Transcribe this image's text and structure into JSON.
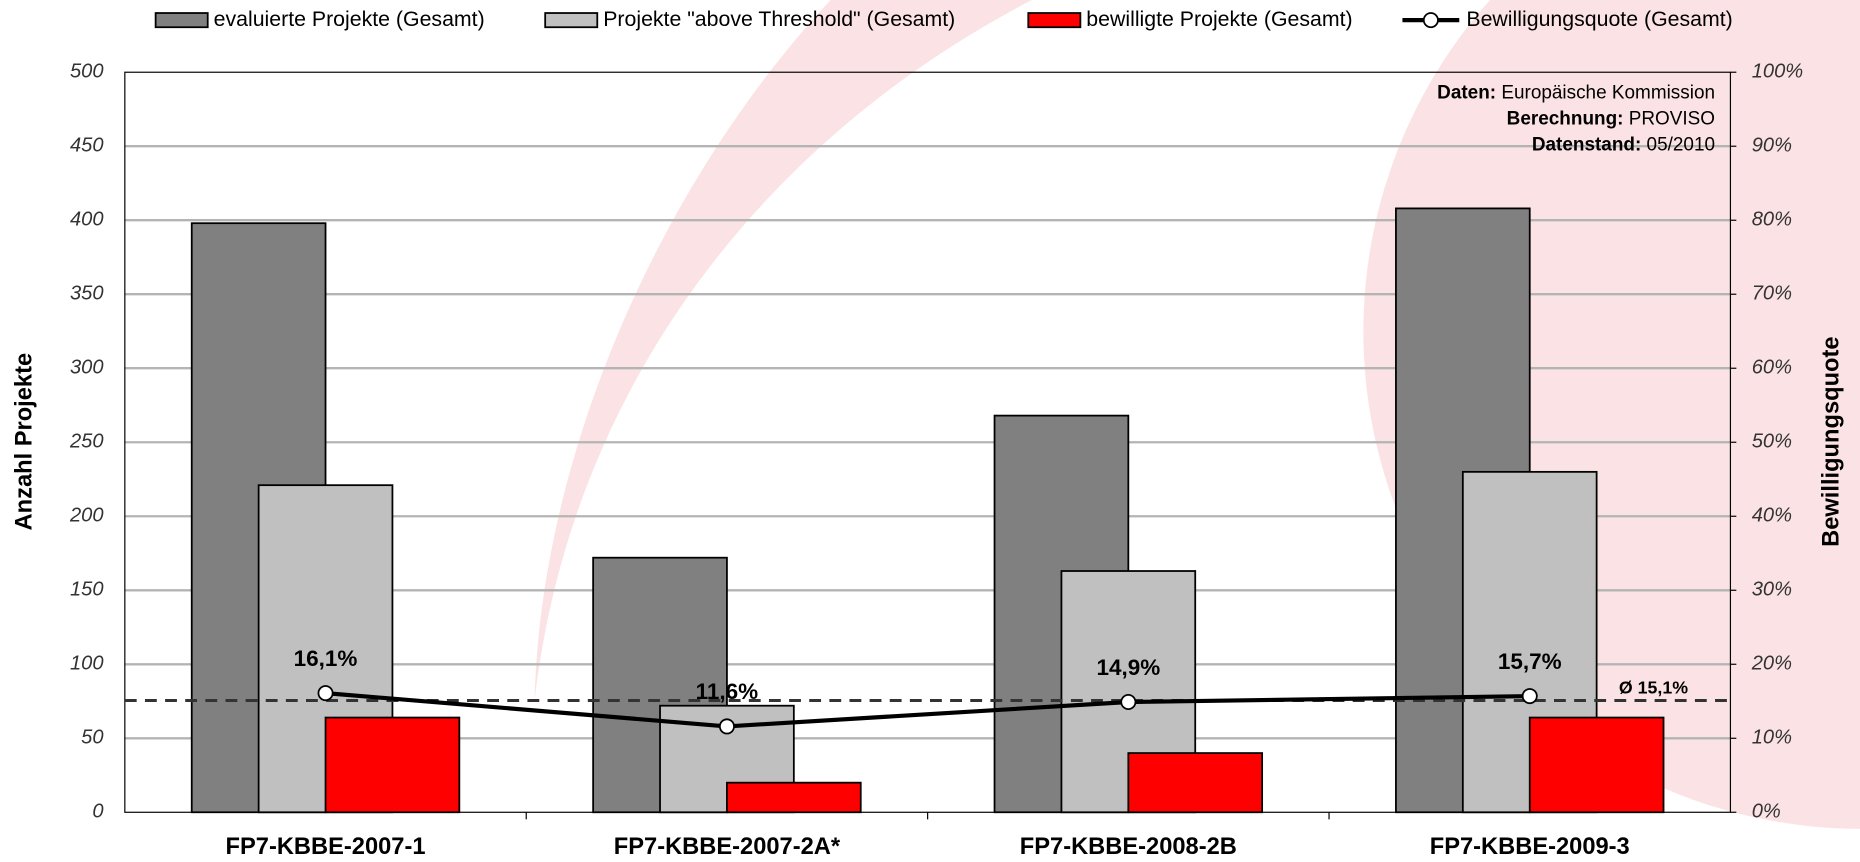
{
  "chart_data": {
    "type": "bar",
    "categories": [
      "FP7-KBBE-2007-1",
      "FP7-KBBE-2007-2A*",
      "FP7-KBBE-2008-2B",
      "FP7-KBBE-2009-3"
    ],
    "series": [
      {
        "name": "evaluierte Projekte (Gesamt)",
        "color": "#808080",
        "values": [
          398,
          172,
          268,
          408
        ]
      },
      {
        "name": "Projekte \"above Threshold\" (Gesamt)",
        "color": "#c0c0c0",
        "values": [
          221,
          72,
          163,
          230
        ]
      },
      {
        "name": "bewilligte Projekte (Gesamt)",
        "color": "#ff0000",
        "values": [
          64,
          20,
          40,
          64
        ]
      },
      {
        "name": "Bewilligungsquote (Gesamt)",
        "color": "#000000",
        "type": "line",
        "axis": "y2",
        "values": [
          16.1,
          11.6,
          14.9,
          15.7
        ],
        "value_labels": [
          "16,1%",
          "11,6%",
          "14,9%",
          "15,7%"
        ]
      }
    ],
    "average": {
      "value": 15.1,
      "label": "Ø 15,1%"
    },
    "y_label": "Anzahl Projekte",
    "y2_label": "Bewilligungsquote",
    "ylim": [
      0,
      500
    ],
    "yticks": [
      0,
      50,
      100,
      150,
      200,
      250,
      300,
      350,
      400,
      450,
      500
    ],
    "y2lim": [
      0,
      100
    ],
    "y2ticks": [
      {
        "value": 0,
        "label": "0%"
      },
      {
        "value": 10,
        "label": "10%"
      },
      {
        "value": 20,
        "label": "20%"
      },
      {
        "value": 30,
        "label": "30%"
      },
      {
        "value": 40,
        "label": "40%"
      },
      {
        "value": 50,
        "label": "50%"
      },
      {
        "value": 60,
        "label": "60%"
      },
      {
        "value": 70,
        "label": "70%"
      },
      {
        "value": 80,
        "label": "80%"
      },
      {
        "value": 90,
        "label": "90%"
      },
      {
        "value": 100,
        "label": "100%"
      }
    ],
    "grid": true,
    "source": [
      {
        "label": "Daten:",
        "text": "Europäische Kommission"
      },
      {
        "label": "Berechnung:",
        "text": "PROVISO"
      },
      {
        "label": "Datenstand:",
        "text": "05/2010"
      }
    ]
  }
}
